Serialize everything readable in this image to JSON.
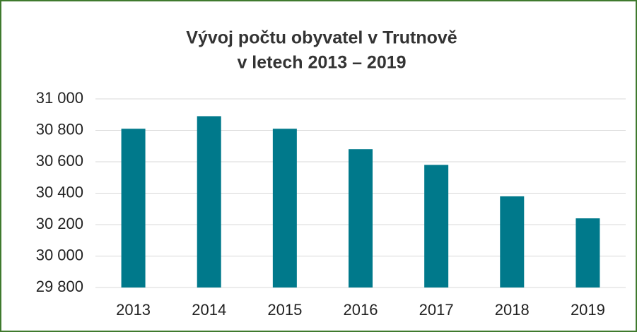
{
  "chart_data": {
    "type": "bar",
    "title": [
      "Vývoj počtu obyvatel v Trutnově",
      "v letech 2013 – 2019"
    ],
    "categories": [
      "2013",
      "2014",
      "2015",
      "2016",
      "2017",
      "2018",
      "2019"
    ],
    "values": [
      30810,
      30890,
      30810,
      30680,
      30580,
      30380,
      30240
    ],
    "color": "#00798b",
    "ylim": [
      29800,
      31000
    ],
    "yticks": [
      {
        "value": 29800,
        "label": "29 800"
      },
      {
        "value": 30000,
        "label": "30 000"
      },
      {
        "value": 30200,
        "label": "30 200"
      },
      {
        "value": 30400,
        "label": "30 400"
      },
      {
        "value": 30600,
        "label": "30 600"
      },
      {
        "value": 30800,
        "label": "30 800"
      },
      {
        "value": 31000,
        "label": "31 000"
      }
    ],
    "grid": true
  }
}
